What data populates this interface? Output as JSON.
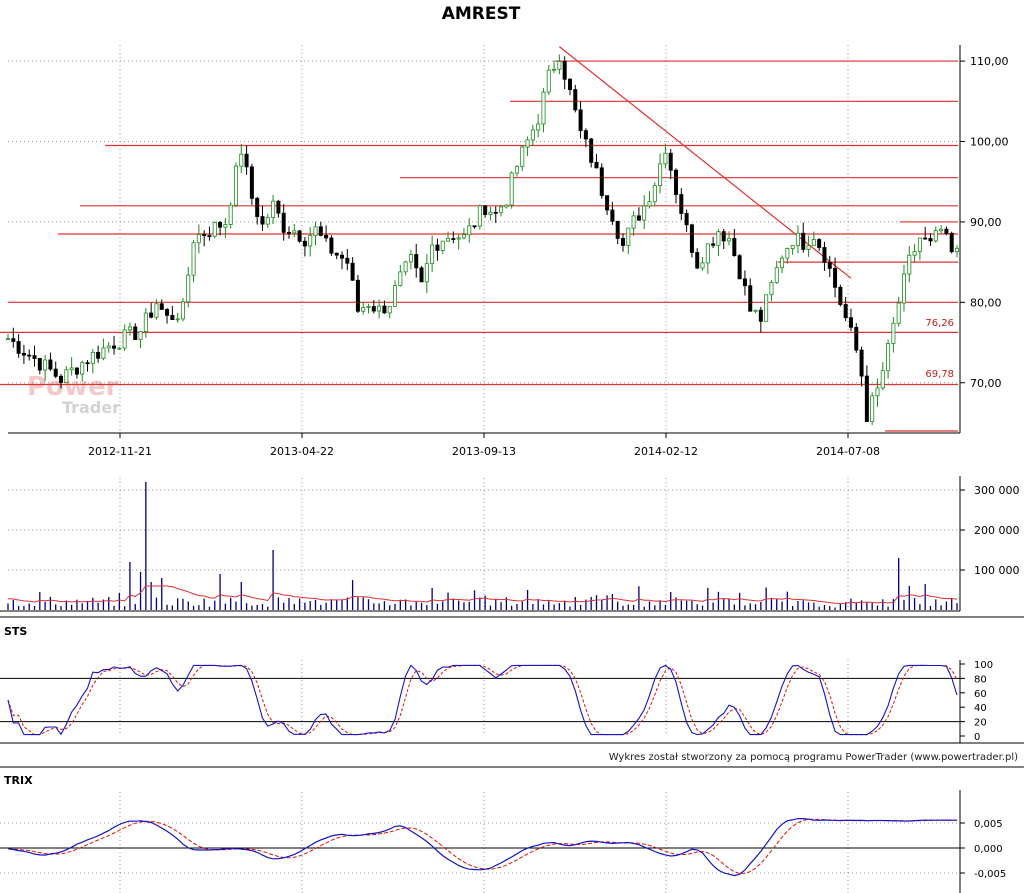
{
  "chart_data": [
    {
      "type": "candlestick",
      "title": "AMREST",
      "x_tick_labels": [
        "2012-11-21",
        "2013-04-22",
        "2013-09-13",
        "2014-02-12",
        "2014-07-08"
      ],
      "y_ticks": [
        "70,00",
        "80,00",
        "90,00",
        "100,00",
        "110,00"
      ],
      "ylim": [
        64,
        112
      ],
      "grid": true,
      "price_path": [
        [
          0,
          75.5
        ],
        [
          5,
          73
        ],
        [
          10,
          70.5
        ],
        [
          15,
          73
        ],
        [
          20,
          75
        ],
        [
          25,
          76.5
        ],
        [
          28,
          80
        ],
        [
          30,
          78
        ],
        [
          33,
          79
        ],
        [
          35,
          88
        ],
        [
          38,
          89
        ],
        [
          41,
          90
        ],
        [
          43,
          96
        ],
        [
          44,
          99
        ],
        [
          46,
          93
        ],
        [
          48,
          89.5
        ],
        [
          50,
          92
        ],
        [
          52,
          89.5
        ],
        [
          54,
          89
        ],
        [
          56,
          88
        ],
        [
          58,
          89
        ],
        [
          60,
          87
        ],
        [
          62,
          86
        ],
        [
          64,
          85
        ],
        [
          66,
          79
        ],
        [
          68,
          80
        ],
        [
          70,
          79
        ],
        [
          72,
          80
        ],
        [
          74,
          83
        ],
        [
          76,
          85
        ],
        [
          78,
          82
        ],
        [
          80,
          87
        ],
        [
          82,
          88
        ],
        [
          84,
          88.5
        ],
        [
          86,
          88
        ],
        [
          88,
          90
        ],
        [
          90,
          92
        ],
        [
          92,
          91
        ],
        [
          94,
          93
        ],
        [
          96,
          97
        ],
        [
          98,
          100
        ],
        [
          100,
          103
        ],
        [
          102,
          108
        ],
        [
          104,
          111
        ],
        [
          106,
          106
        ],
        [
          108,
          101
        ],
        [
          110,
          98
        ],
        [
          112,
          94
        ],
        [
          114,
          91
        ],
        [
          116,
          87
        ],
        [
          118,
          90
        ],
        [
          120,
          92
        ],
        [
          122,
          95
        ],
        [
          124,
          99.5
        ],
        [
          126,
          94
        ],
        [
          128,
          89
        ],
        [
          130,
          85
        ],
        [
          132,
          87
        ],
        [
          134,
          89
        ],
        [
          136,
          88
        ],
        [
          138,
          84
        ],
        [
          140,
          79
        ],
        [
          142,
          78
        ],
        [
          144,
          82
        ],
        [
          146,
          86
        ],
        [
          148,
          88
        ],
        [
          150,
          87.5
        ],
        [
          152,
          88.5
        ],
        [
          154,
          86
        ],
        [
          156,
          82
        ],
        [
          158,
          78
        ],
        [
          160,
          74
        ],
        [
          161,
          71
        ],
        [
          162,
          66
        ],
        [
          164,
          69
        ],
        [
          166,
          74
        ],
        [
          168,
          80
        ],
        [
          170,
          85
        ],
        [
          172,
          88
        ],
        [
          174,
          87
        ],
        [
          176,
          89
        ],
        [
          178,
          86
        ]
      ],
      "levels": [
        110,
        105,
        99.5,
        95.5,
        92,
        88.5,
        80,
        76.26,
        69.78,
        85,
        90,
        64
      ],
      "level_labels": [
        "76,26",
        "69,78"
      ],
      "trend_line": {
        "from": [
          104,
          111.8
        ],
        "to": [
          159,
          83
        ]
      }
    },
    {
      "type": "bar",
      "name": "volume",
      "y_ticks": [
        "100 000",
        "200 000",
        "300 000"
      ],
      "ylim": [
        0,
        330000
      ]
    },
    {
      "type": "line",
      "name": "STS",
      "label": "STS",
      "y_ticks": [
        "0",
        "20",
        "40",
        "60",
        "80",
        "100"
      ],
      "ylim": [
        0,
        100
      ],
      "levels": [
        20,
        80
      ]
    },
    {
      "type": "line",
      "name": "TRIX",
      "label": "TRIX",
      "y_ticks": [
        "-0,005",
        "0,000",
        "0,005"
      ],
      "ylim": [
        -0.0062,
        0.0068
      ],
      "trix_path": [
        [
          0,
          0
        ],
        [
          6,
          -0.0015
        ],
        [
          10,
          -0.0008
        ],
        [
          14,
          0.0012
        ],
        [
          18,
          0.003
        ],
        [
          22,
          0.0052
        ],
        [
          26,
          0.0055
        ],
        [
          30,
          0.0035
        ],
        [
          34,
          -0.0002
        ],
        [
          38,
          -0.0005
        ],
        [
          42,
          -0.0001
        ],
        [
          46,
          -0.0004
        ],
        [
          50,
          -0.0024
        ],
        [
          54,
          -0.0015
        ],
        [
          58,
          0.0012
        ],
        [
          62,
          0.0028
        ],
        [
          66,
          0.0025
        ],
        [
          70,
          0.003
        ],
        [
          74,
          0.0048
        ],
        [
          78,
          0.0022
        ],
        [
          82,
          -0.0015
        ],
        [
          86,
          -0.004
        ],
        [
          90,
          -0.0045
        ],
        [
          94,
          -0.0025
        ],
        [
          98,
          0
        ],
        [
          102,
          0.0012
        ],
        [
          106,
          0.0003
        ],
        [
          110,
          0.0015
        ],
        [
          114,
          0.001
        ],
        [
          118,
          0.0012
        ],
        [
          122,
          -0.0008
        ],
        [
          126,
          -0.0018
        ],
        [
          130,
          0.0003
        ],
        [
          134,
          -0.0048
        ],
        [
          138,
          -0.0057
        ],
        [
          142,
          -0.0008
        ],
        [
          146,
          0.0052
        ],
        [
          150,
          0.006
        ],
        [
          152,
          0.0055
        ]
      ]
    }
  ],
  "credit": "Wykres został stworzony za pomocą programu PowerTrader (www.powertrader.pl)",
  "watermark": {
    "line1": "Power",
    "line2": "Trader"
  },
  "colors": {
    "up": "#1e8c1e",
    "down": "#000000",
    "level": "#e03030",
    "volume": "#000080",
    "vol_ma": "#e03030",
    "sts_k": "#1515c8",
    "sts_d": "#e01010",
    "trix": "#1515c8",
    "trix_sig": "#e01010",
    "grid": "#999999"
  }
}
